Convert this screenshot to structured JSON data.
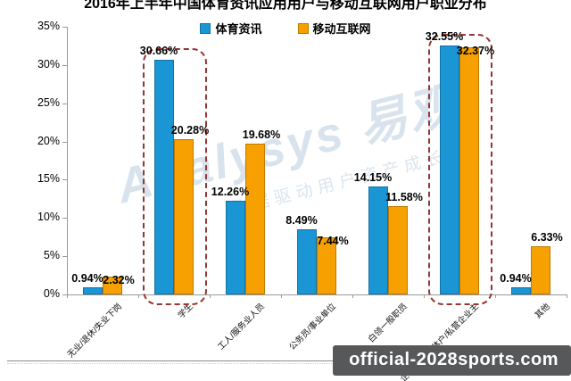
{
  "title": "2016年上半年中国体育资讯应用用户与移动互联网用户职业分布",
  "legend": {
    "items": [
      {
        "label": "体育资讯",
        "color": "#1B96D5",
        "border": "#1272A8"
      },
      {
        "label": "移动互联网",
        "color": "#F6A001",
        "border": "#C17A00"
      }
    ]
  },
  "chart_data": {
    "type": "bar",
    "title": "2016年上半年中国体育资讯应用用户与移动互联网用户职业分布",
    "categories": [
      "无业/退休/失业下岗",
      "学生",
      "工人/服务业人员",
      "公务员/事业单位",
      "白领一般职员",
      "企业管理/个体户/私营企业主",
      "其他"
    ],
    "series": [
      {
        "name": "体育资讯",
        "color": "#1B96D5",
        "border": "#1272A8",
        "values": [
          0.94,
          30.66,
          12.26,
          8.49,
          14.15,
          32.55,
          0.94
        ]
      },
      {
        "name": "移动互联网",
        "color": "#F6A001",
        "border": "#C17A00",
        "values": [
          2.32,
          20.28,
          19.68,
          7.44,
          11.58,
          32.37,
          6.33
        ]
      }
    ],
    "y_ticks": [
      "0%",
      "5%",
      "10%",
      "15%",
      "20%",
      "25%",
      "30%",
      "35%"
    ],
    "ylim": [
      0,
      35
    ],
    "grid": false,
    "legend_position": "top",
    "highlight_groups": [
      1,
      5
    ],
    "highlight_color": "#943634"
  },
  "watermark": {
    "badge": "official-2028sports.com",
    "brand": "Analysys 易观",
    "slogan": "数据驱动用户资产成长"
  }
}
